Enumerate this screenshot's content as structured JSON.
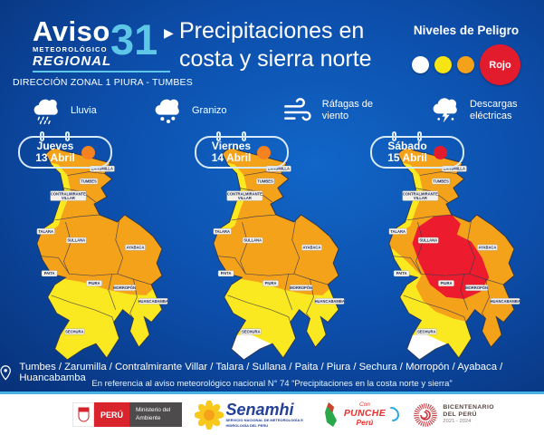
{
  "header": {
    "aviso": "Aviso",
    "meteorologico": "METEOROLÓGICO",
    "regional": "REGIONAL",
    "numero": "31",
    "arrow": "▶",
    "direccion": "DIRECCIÓN ZONAL 1 PIURA - TUMBES",
    "title_line1": "Precipitaciones en",
    "title_line2": "costa y sierra norte",
    "danger_title": "Niveles de Peligro",
    "danger_levels": [
      {
        "name": "blanco",
        "color": "#ffffff"
      },
      {
        "name": "amarillo",
        "color": "#f7e414"
      },
      {
        "name": "naranja",
        "color": "#f5a21b"
      },
      {
        "name": "rojo",
        "color": "#e31c2d",
        "label": "Rojo"
      }
    ]
  },
  "legend_icons": [
    {
      "id": "rain",
      "label": "Lluvia"
    },
    {
      "id": "hail",
      "label": "Granizo"
    },
    {
      "id": "wind",
      "label": "Ráfagas de viento"
    },
    {
      "id": "lightning",
      "label": "Descargas eléctricas"
    }
  ],
  "maps": [
    {
      "day": "Jueves",
      "date": "13 Abril",
      "dot_color": "#f5821f",
      "base_color": "#f5a21b",
      "overlays": [
        {
          "zone": "south_wide",
          "color": "#fae920"
        },
        {
          "zone": "east_edge",
          "color": "#fae920"
        },
        {
          "zone": "coast_nw",
          "color": "#fae920"
        }
      ]
    },
    {
      "day": "Viernes",
      "date": "14 Abril",
      "dot_color": "#f5821f",
      "base_color": "#f5a21b",
      "overlays": [
        {
          "zone": "south_wide",
          "color": "#fae920"
        },
        {
          "zone": "east_edge",
          "color": "#fae920"
        },
        {
          "zone": "coast_nw",
          "color": "#fae920"
        },
        {
          "zone": "white_tip",
          "color": "#ffffff"
        }
      ]
    },
    {
      "day": "Sábado",
      "date": "15 Abril",
      "dot_color": "#e31c2d",
      "base_color": "#f5a21b",
      "overlays": [
        {
          "zone": "south_west",
          "color": "#fae920"
        },
        {
          "zone": "east_edge",
          "color": "#fae920"
        },
        {
          "zone": "coast_nw",
          "color": "#fae920"
        },
        {
          "zone": "red_center",
          "color": "#ec1c2e"
        },
        {
          "zone": "white_tip",
          "color": "#ffffff"
        }
      ]
    }
  ],
  "region_labels": [
    "ZARUMILLA",
    "TUMBES",
    "CONTRALMIRANTE VILLAR",
    "TALARA",
    "SULLANA",
    "AYABACA",
    "PAITA",
    "PIURA",
    "MORROPÓN",
    "HUANCABAMBA",
    "SECHURA"
  ],
  "bottom": {
    "locations": "Tumbes / Zarumilla / Contralmirante Villar / Talara / Sullana / Paita / Piura / Sechura / Morropón / Ayabaca / Huancabamba",
    "reference": "En referencia al aviso meteorológico nacional N° 74 “Precipitaciones en la costa norte y sierra”"
  },
  "logos": {
    "peru": "PERÚ",
    "ministerio": "Ministerio del Ambiente",
    "senamhi": "Senamhi",
    "senamhi_sub": "SERVICIO NACIONAL DE METEOROLOGÍA E HIDROLOGÍA DEL PERÚ",
    "punche_con": "Con",
    "punche_main": "PUNCHE",
    "punche_peru": "Perú",
    "bicent_l1": "BICENTENARIO",
    "bicent_l2": "DEL PERÚ",
    "bicent_l3": "2021 - 2024"
  }
}
